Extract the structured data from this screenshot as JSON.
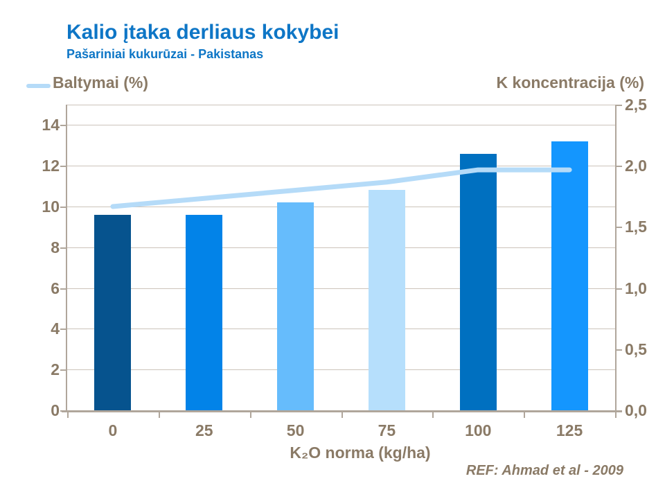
{
  "header": {
    "title": "Kalio įtaka derliaus kokybei",
    "subtitle": "Pašariniai kukurūzai - Pakistanas"
  },
  "footer": {
    "reference": "REF: Ahmad et al - 2009"
  },
  "chart_data": {
    "type": "combo-bar-line",
    "categories": [
      "0",
      "25",
      "50",
      "75",
      "100",
      "125"
    ],
    "xlabel": "K₂O norma (kg/ha)",
    "grid": true,
    "legend_position": "top-left",
    "left_axis": {
      "title": "Baltymai (%)",
      "tick_values": [
        0,
        2,
        4,
        6,
        8,
        10,
        12,
        14
      ],
      "range": [
        0,
        15
      ]
    },
    "right_axis": {
      "title": "K koncentracija (%)",
      "tick_labels": [
        "0,0",
        "0,5",
        "1,0",
        "1,5",
        "2,0",
        "2,5"
      ],
      "tick_values": [
        0,
        0.5,
        1.0,
        1.5,
        2.0,
        2.5
      ],
      "range": [
        0,
        2.5
      ]
    },
    "series": [
      {
        "name": "K koncentracija (%)",
        "type": "bar",
        "axis": "right",
        "values": [
          1.6,
          1.6,
          1.7,
          1.8,
          2.1,
          2.2
        ],
        "bar_colors": [
          "#06538E",
          "#0283E8",
          "#66BCFC",
          "#B6DFFC",
          "#0070C0",
          "#1496FE"
        ]
      },
      {
        "name": "Baltymai (%)",
        "type": "line",
        "axis": "left",
        "values": [
          10.0,
          10.4,
          10.8,
          11.2,
          11.8,
          11.8
        ],
        "color": "#B5DBF8"
      }
    ],
    "colors": {
      "text": "#8A7A66",
      "axis": "#B0A69B",
      "gridline": "#CCC3BA",
      "heading": "#0E76C6"
    }
  }
}
